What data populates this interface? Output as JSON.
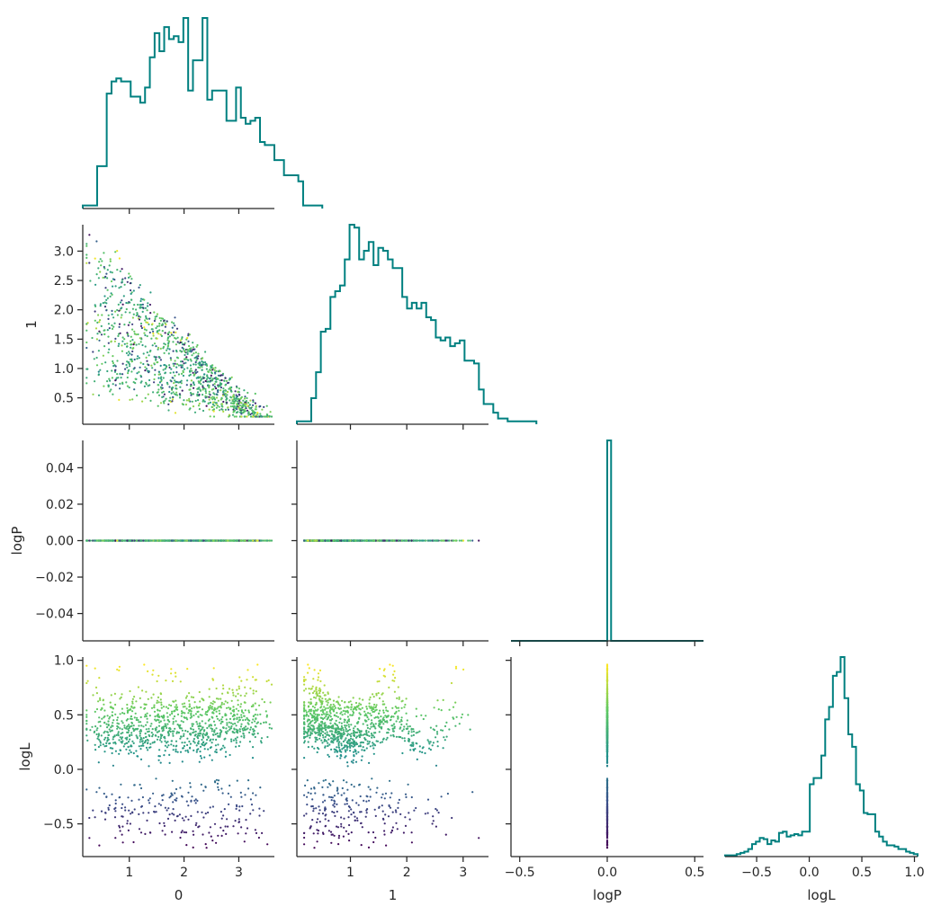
{
  "chart_data": {
    "type": "corner-plot",
    "variables": [
      "0",
      "1",
      "logP",
      "logL"
    ],
    "colors": {
      "histogram": "#008080",
      "axis": "#262626",
      "colormap": [
        "#440154",
        "#3b528b",
        "#21918c",
        "#5ec962",
        "#fde725"
      ],
      "background": "#ffffff"
    },
    "grid": false,
    "ranges": {
      "0": [
        0.15,
        3.65
      ],
      "1": [
        0.05,
        3.45
      ],
      "logP": [
        -0.055,
        0.055
      ],
      "logL": [
        -0.8,
        1.03
      ]
    },
    "hist_x_ranges": {
      "logP": [
        -0.55,
        0.55
      ]
    },
    "ticks": {
      "0": [
        {
          "v": 1,
          "label": "1"
        },
        {
          "v": 2,
          "label": "2"
        },
        {
          "v": 3,
          "label": "3"
        }
      ],
      "1_x": [
        {
          "v": 1,
          "label": "1"
        },
        {
          "v": 2,
          "label": "2"
        },
        {
          "v": 3,
          "label": "3"
        }
      ],
      "1_y": [
        {
          "v": 0.5,
          "label": "0.5"
        },
        {
          "v": 1.0,
          "label": "1.0"
        },
        {
          "v": 1.5,
          "label": "1.5"
        },
        {
          "v": 2.0,
          "label": "2.0"
        },
        {
          "v": 2.5,
          "label": "2.5"
        },
        {
          "v": 3.0,
          "label": "3.0"
        }
      ],
      "logP_y": [
        {
          "v": 0.04,
          "label": "0.04"
        },
        {
          "v": 0.02,
          "label": "0.02"
        },
        {
          "v": 0.0,
          "label": "0.00"
        },
        {
          "v": -0.02,
          "label": "−0.02"
        },
        {
          "v": -0.04,
          "label": "−0.04"
        }
      ],
      "logP_x": [
        {
          "v": -0.5,
          "label": "−0.5"
        },
        {
          "v": 0.0,
          "label": "0.0"
        },
        {
          "v": 0.5,
          "label": "0.5"
        }
      ],
      "logL_y": [
        {
          "v": 1.0,
          "label": "1.0"
        },
        {
          "v": 0.5,
          "label": "0.5"
        },
        {
          "v": 0.0,
          "label": "0.0"
        },
        {
          "v": -0.5,
          "label": "−0.5"
        }
      ],
      "logL_x": [
        {
          "v": -0.5,
          "label": "−0.5"
        },
        {
          "v": 0.0,
          "label": "0.0"
        },
        {
          "v": 0.5,
          "label": "0.5"
        },
        {
          "v": 1.0,
          "label": "1.0"
        }
      ]
    },
    "axis_labels": {
      "x": [
        "0",
        "1",
        "logP",
        "logL"
      ],
      "y": [
        "1",
        "logP",
        "logL"
      ]
    },
    "histograms": {
      "0": {
        "bin_start": 0.15,
        "bin_width": 0.0875,
        "counts": [
          1,
          1,
          1,
          14,
          14,
          38,
          42,
          43,
          42,
          42,
          37,
          37,
          35,
          40,
          50,
          58,
          52,
          60,
          56,
          57,
          55,
          63,
          39,
          49,
          49,
          63,
          36,
          39,
          39,
          39,
          29,
          29,
          40,
          30,
          28,
          29,
          30,
          22,
          21,
          21,
          16,
          16,
          11,
          11,
          11,
          9,
          1,
          1,
          1,
          1
        ]
      },
      "1": {
        "bin_start": 0.05,
        "bin_width": 0.085,
        "counts": [
          1,
          1,
          1,
          9,
          18,
          32,
          33,
          44,
          46,
          48,
          57,
          69,
          68,
          57,
          60,
          63,
          55,
          61,
          60,
          57,
          54,
          54,
          44,
          40,
          42,
          40,
          42,
          37,
          36,
          30,
          29,
          30,
          27,
          28,
          29,
          22,
          22,
          21,
          12,
          7,
          7,
          4,
          2,
          2,
          1,
          1,
          1,
          1,
          1,
          1
        ]
      },
      "logP": {
        "bin_start": -0.55,
        "bin_width": 0.022,
        "counts": [
          0,
          0,
          0,
          0,
          0,
          0,
          0,
          0,
          0,
          0,
          0,
          0,
          0,
          0,
          0,
          0,
          0,
          0,
          0,
          0,
          0,
          0,
          0,
          0,
          0,
          1,
          0,
          0,
          0,
          0,
          0,
          0,
          0,
          0,
          0,
          0,
          0,
          0,
          0,
          0,
          0,
          0,
          0,
          0,
          0,
          0,
          0,
          0,
          0,
          0
        ]
      },
      "logL": {
        "bin_start": -0.8,
        "bin_width": 0.0366,
        "counts": [
          1,
          1,
          1,
          2,
          3,
          4,
          6,
          10,
          12,
          15,
          14,
          10,
          13,
          12,
          19,
          20,
          16,
          17,
          18,
          17,
          20,
          20,
          58,
          63,
          63,
          81,
          110,
          120,
          145,
          148,
          160,
          127,
          98,
          88,
          58,
          53,
          35,
          34,
          34,
          20,
          16,
          12,
          9,
          9,
          8,
          6,
          6,
          4,
          3,
          2
        ]
      }
    },
    "scatter_seed": 7,
    "scatter_points_per_panel": 1200
  }
}
